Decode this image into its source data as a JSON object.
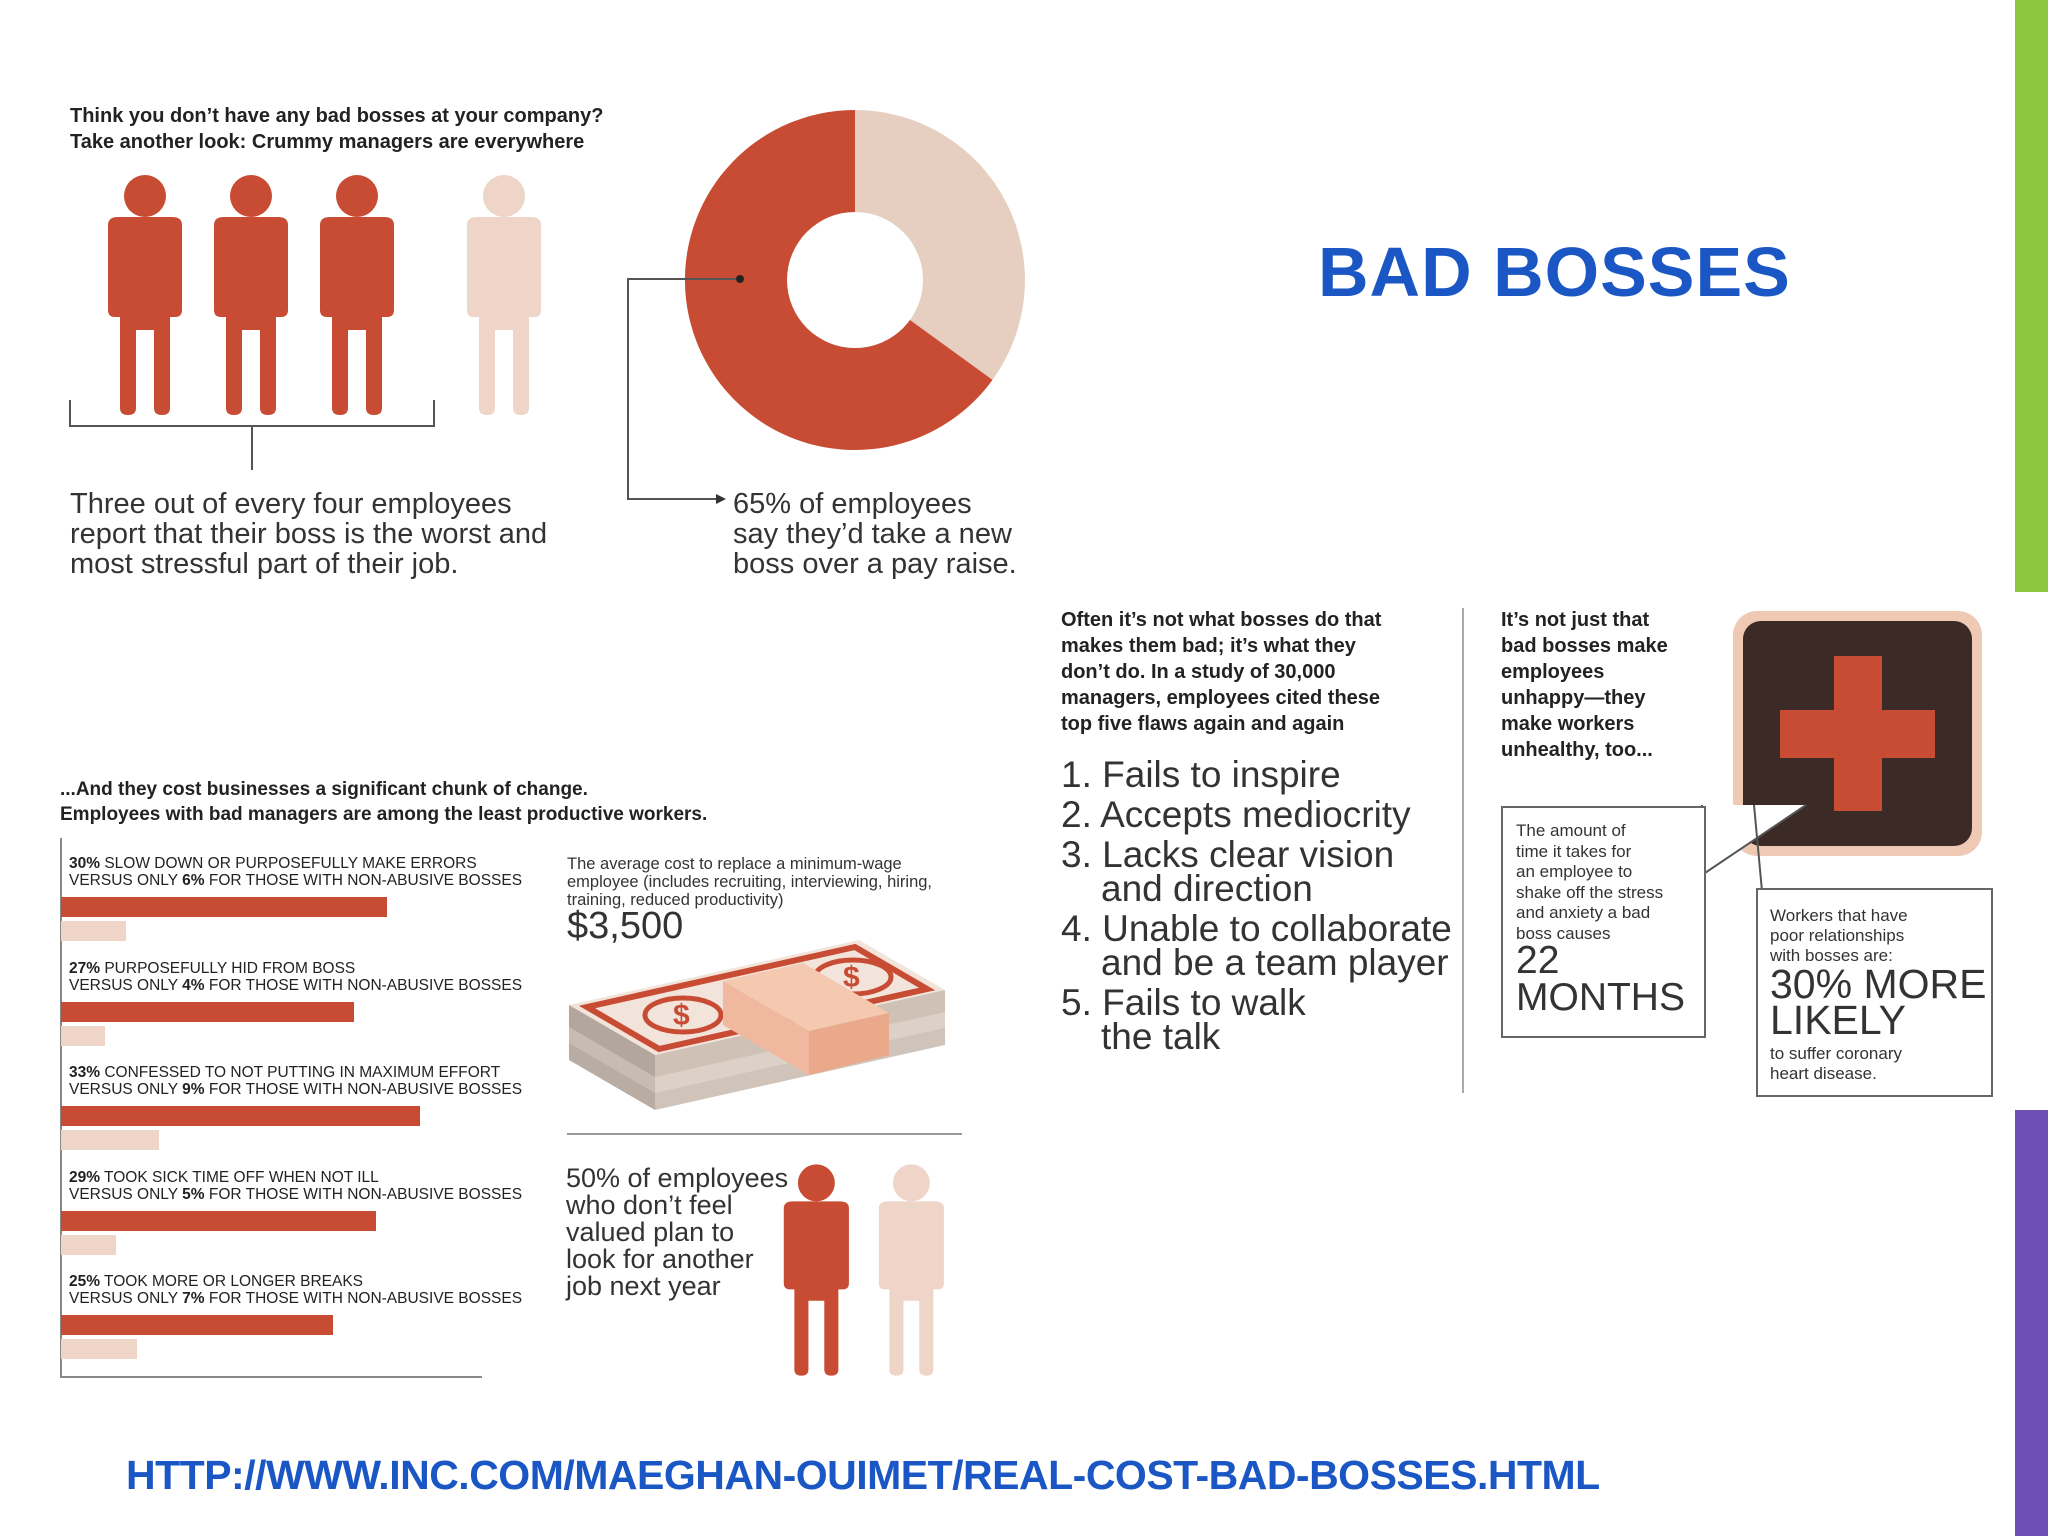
{
  "slide": {
    "title": "BAD BOSSES",
    "source_url": "HTTP://WWW.INC.COM/MAEGHAN-OUIMET/REAL-COST-BAD-BOSSES.HTML",
    "accent_colors": {
      "title": "#1a56c4",
      "green": "#8dc63f",
      "purple": "#6b4fb5",
      "rust": "#c84b33",
      "beige": "#eed5c8"
    }
  },
  "section1": {
    "headline_line1": "Think you don’t have any bad bosses at your company?",
    "headline_line2": "Take another look: Crummy managers are everywhere",
    "stat_line1": "Three out of every four employees",
    "stat_line2": "report that their boss is the  worst and",
    "stat_line3": "most stressful part of their job.",
    "people_icons": [
      "person-rust",
      "person-rust",
      "person-rust",
      "person-beige"
    ]
  },
  "section2": {
    "donut_percent": 65,
    "stat_line1": "65% of employees",
    "stat_line2": "say they’d take a new",
    "stat_line3": "boss over a pay raise."
  },
  "section3": {
    "headline_line1": "...And they cost businesses a significant chunk of change.",
    "headline_line2": "Employees with bad managers are among the least productive workers.",
    "stats": [
      {
        "line1_bold": "30%",
        "line1": " SLOW DOWN OR PURPOSEFULLY MAKE ERRORS",
        "line2_pre": "VERSUS ONLY ",
        "line2_bold": "6%",
        "line2_post": " FOR THOSE WITH NON-ABUSIVE BOSSES",
        "abusive": 30,
        "nonabusive": 6
      },
      {
        "line1_bold": "27%",
        "line1": " PURPOSEFULLY HID FROM BOSS",
        "line2_pre": "VERSUS ONLY ",
        "line2_bold": "4%",
        "line2_post": " FOR THOSE WITH NON-ABUSIVE BOSSES",
        "abusive": 27,
        "nonabusive": 4
      },
      {
        "line1_bold": "33%",
        "line1": " CONFESSED TO NOT PUTTING IN MAXIMUM EFFORT",
        "line2_pre": "VERSUS ONLY ",
        "line2_bold": "9%",
        "line2_post": " FOR THOSE WITH NON-ABUSIVE BOSSES",
        "abusive": 33,
        "nonabusive": 9
      },
      {
        "line1_bold": "29%",
        "line1": " TOOK SICK TIME OFF WHEN NOT ILL",
        "line2_pre": "VERSUS ONLY ",
        "line2_bold": "5%",
        "line2_post": " FOR THOSE WITH NON-ABUSIVE BOSSES",
        "abusive": 29,
        "nonabusive": 5
      },
      {
        "line1_bold": "25%",
        "line1": " TOOK MORE OR LONGER BREAKS",
        "line2_pre": "VERSUS ONLY ",
        "line2_bold": "7%",
        "line2_post": " FOR THOSE WITH NON-ABUSIVE BOSSES",
        "abusive": 25,
        "nonabusive": 7
      }
    ],
    "cost_line1": "The average cost to replace a minimum-wage",
    "cost_line2": "employee (includes recruiting, interviewing, hiring,",
    "cost_line3": "training, reduced productivity)",
    "cost_value": "$3,500",
    "valued_line1": "50% of employees",
    "valued_line2": "who don’t feel",
    "valued_line3": "valued plan to",
    "valued_line4": "look for another",
    "valued_line5": "job next year"
  },
  "section4": {
    "headline_lines": [
      "Often it’s not what bosses do that",
      "makes them bad; it’s what they",
      "don’t do. In a study of 30,000",
      "managers, employees cited these",
      "top five flaws again and again"
    ],
    "flaws": [
      {
        "line1": "1. Fails to inspire",
        "line2": ""
      },
      {
        "line1": "2. Accepts mediocrity",
        "line2": ""
      },
      {
        "line1": "3. Lacks clear vision",
        "line2": "and direction"
      },
      {
        "line1": "4. Unable to collaborate",
        "line2": "and be a team player"
      },
      {
        "line1": "5. Fails to walk",
        "line2": "the talk"
      }
    ]
  },
  "section5": {
    "headline_lines": [
      "It’s not just that",
      "bad bosses make",
      "employees",
      "unhappy—they",
      "make workers",
      "unhealthy, too..."
    ],
    "stress_lines": [
      "The amount of",
      "time it takes for",
      "an employee to",
      "shake off the stress",
      "and anxiety a bad",
      "boss causes"
    ],
    "stress_value1": "22",
    "stress_value2": "MONTHS",
    "heart_line1": "Workers that have",
    "heart_line2": "poor relationships",
    "heart_line3": "with bosses are:",
    "heart_value1": "30% MORE",
    "heart_value2": "LIKELY",
    "heart_line4": "to suffer coronary",
    "heart_line5": "heart disease."
  }
}
